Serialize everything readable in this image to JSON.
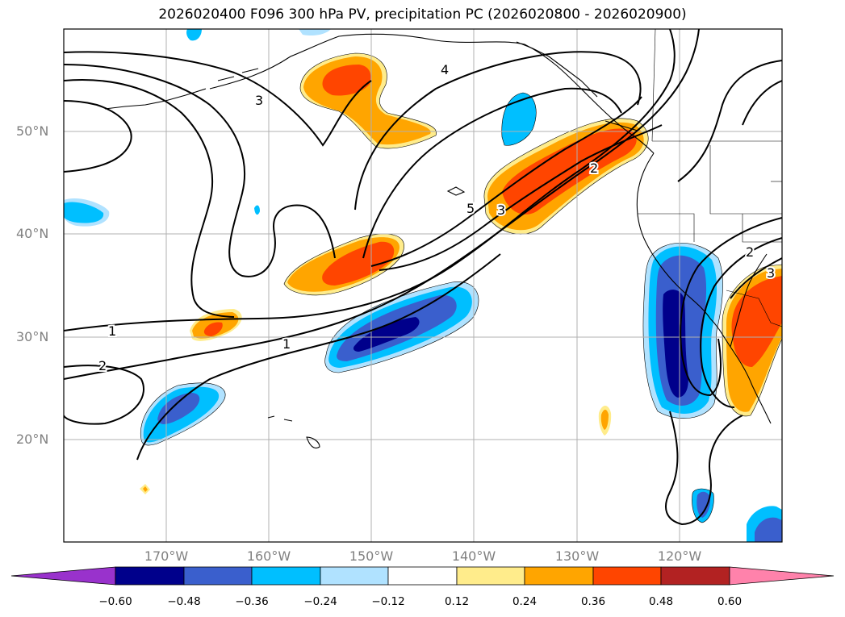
{
  "title": "2026020400 F096 300 hPa PV, precipitation PC (2026020800 - 2026020900)",
  "lat_labels": [
    "50°N",
    "40°N",
    "30°N",
    "20°N"
  ],
  "lon_labels": [
    "170°W",
    "160°W",
    "150°W",
    "140°W",
    "130°W",
    "120°W"
  ],
  "contour_labels": [
    "1",
    "1",
    "2",
    "2",
    "2",
    "3",
    "3",
    "3",
    "4",
    "5"
  ],
  "colorbar": {
    "ticks": [
      "−0.60",
      "−0.48",
      "−0.36",
      "−0.24",
      "−0.12",
      "0.12",
      "0.24",
      "0.36",
      "0.48",
      "0.60"
    ],
    "colors": [
      "#9932cc",
      "#00008b",
      "#3a5fcd",
      "#00bfff",
      "#b0e2ff",
      "#ffffff",
      "#ffec8b",
      "#ffa500",
      "#ff4500",
      "#b22222",
      "#ff82ab"
    ]
  },
  "colors": {
    "grid": "#b0b0b0",
    "contour": "#000000",
    "tick_text": "#808080"
  }
}
